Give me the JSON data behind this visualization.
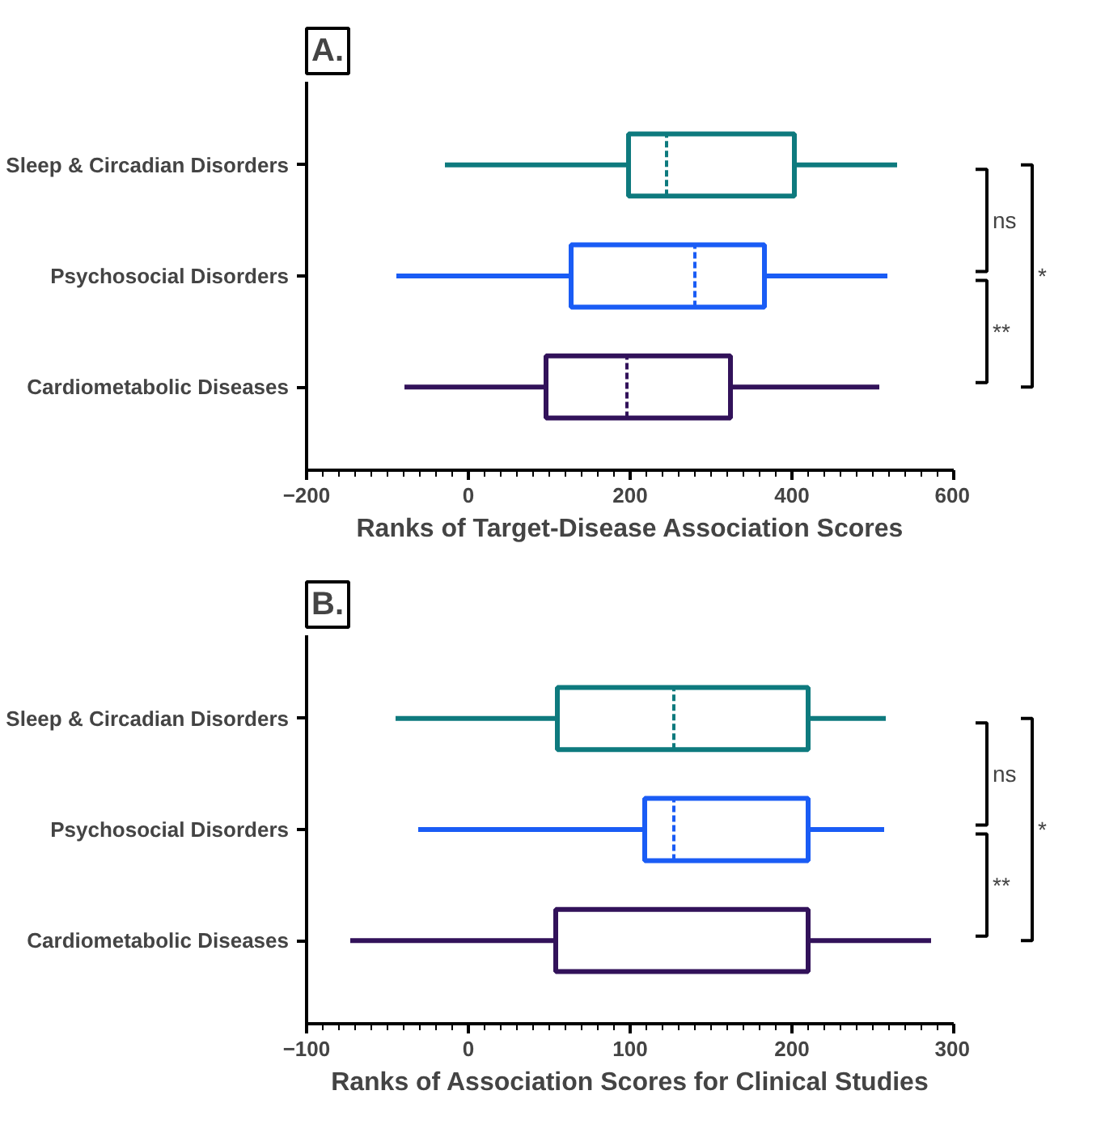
{
  "chart_data": [
    {
      "type": "box",
      "orientation": "horizontal",
      "title": "A.",
      "xlabel": "Ranks of Target-Disease Association Scores",
      "categories": [
        "Sleep & Circadian Disorders",
        "Psychosocial Disorders",
        "Cardiometabolic Diseases"
      ],
      "colors": [
        "#0e7a7e",
        "#1a5cf5",
        "#32125a"
      ],
      "boxes": [
        {
          "low": -29,
          "q1": 198,
          "median": 245,
          "q3": 403,
          "high": 530
        },
        {
          "low": -89,
          "q1": 127,
          "median": 280,
          "q3": 366,
          "high": 518
        },
        {
          "low": -79,
          "q1": 96,
          "median": 196,
          "q3": 324,
          "high": 508
        }
      ],
      "xlim": [
        -200,
        600
      ],
      "xticks": [
        -200,
        0,
        200,
        400,
        600
      ],
      "grid": false,
      "annotations": [
        "ns",
        "**",
        "*"
      ]
    },
    {
      "type": "box",
      "orientation": "horizontal",
      "title": "B.",
      "xlabel": "Ranks of Association Scores for Clinical Studies",
      "categories": [
        "Sleep & Circadian Disorders",
        "Psychosocial Disorders",
        "Cardiometabolic Diseases"
      ],
      "colors": [
        "#0e7a7e",
        "#1a5cf5",
        "#32125a"
      ],
      "boxes": [
        {
          "low": -45,
          "q1": 55,
          "median": 127,
          "q3": 210,
          "high": 258
        },
        {
          "low": -31,
          "q1": 109,
          "median": 127,
          "q3": 210,
          "high": 257
        },
        {
          "low": -73,
          "q1": 54,
          "median": 54,
          "q3": 210,
          "high": 286
        }
      ],
      "xlim": [
        -100,
        300
      ],
      "xticks": [
        -100,
        0,
        100,
        200,
        300
      ],
      "grid": false,
      "annotations": [
        "ns",
        "**",
        "*"
      ]
    }
  ]
}
